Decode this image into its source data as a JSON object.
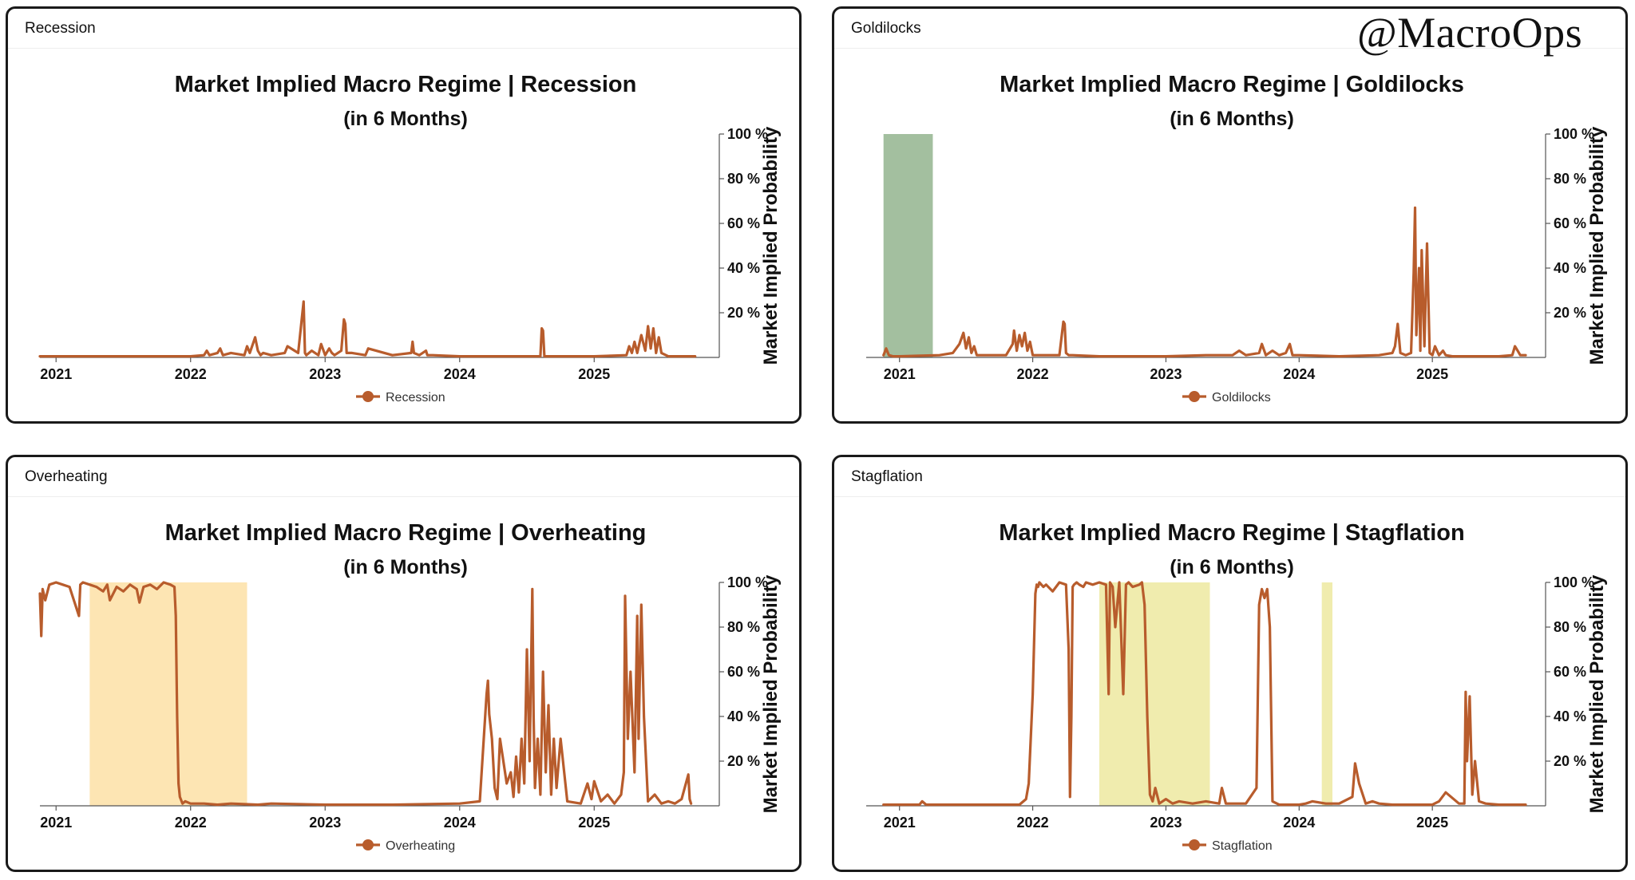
{
  "watermark": "@MacroOps",
  "colors": {
    "line": "#b85c2c",
    "axis": "#555555",
    "text": "#111111"
  },
  "panels": [
    {
      "header": "Recession",
      "chart_data": {
        "type": "line",
        "title": "Market Implied Macro Regime | Recession",
        "subtitle": "(in 6 Months)",
        "ylabel": "Market Implied Probability",
        "ylim": [
          0,
          100
        ],
        "yticks": [
          20,
          40,
          60,
          80,
          100
        ],
        "ytick_suffix": " %",
        "xlim": [
          2020.88,
          2025.93
        ],
        "xticks": [
          2021,
          2022,
          2023,
          2024,
          2025
        ],
        "legend": "Recession",
        "legend_position": "bottom-center",
        "line_color": "#b85c2c",
        "shaded_regions": [],
        "series": [
          {
            "name": "Recession",
            "x": [
              2020.88,
              2021.0,
              2021.5,
              2022.0,
              2022.1,
              2022.12,
              2022.14,
              2022.2,
              2022.22,
              2022.24,
              2022.3,
              2022.4,
              2022.42,
              2022.44,
              2022.48,
              2022.5,
              2022.52,
              2022.54,
              2022.6,
              2022.7,
              2022.72,
              2022.8,
              2022.84,
              2022.85,
              2022.86,
              2022.9,
              2022.95,
              2022.97,
              2023.0,
              2023.03,
              2023.05,
              2023.07,
              2023.12,
              2023.14,
              2023.15,
              2023.16,
              2023.2,
              2023.3,
              2023.32,
              2023.5,
              2023.64,
              2023.65,
              2023.66,
              2023.7,
              2023.75,
              2023.76,
              2023.8,
              2024.0,
              2024.4,
              2024.6,
              2024.61,
              2024.62,
              2024.63,
              2024.7,
              2025.0,
              2025.24,
              2025.26,
              2025.28,
              2025.3,
              2025.32,
              2025.35,
              2025.38,
              2025.4,
              2025.42,
              2025.44,
              2025.46,
              2025.48,
              2025.5,
              2025.55,
              2025.75
            ],
            "values": [
              0.5,
              0.5,
              0.5,
              0.5,
              1,
              3,
              1,
              2,
              4,
              1,
              2,
              1,
              5,
              2,
              9,
              3,
              1,
              2,
              1,
              2,
              5,
              2,
              25,
              2,
              1,
              3,
              1,
              6,
              1,
              4,
              2,
              1,
              3,
              17,
              15,
              2,
              2,
              1,
              4,
              1,
              2,
              7,
              2,
              1,
              3,
              1,
              1,
              0.5,
              0.5,
              0.5,
              13,
              12,
              0.5,
              0.5,
              0.5,
              1,
              5,
              2,
              7,
              2,
              10,
              3,
              14,
              4,
              13,
              2,
              9,
              2,
              0.5,
              0.5
            ]
          }
        ]
      }
    },
    {
      "header": "Goldilocks",
      "chart_data": {
        "type": "line",
        "title": "Market Implied Macro Regime | Goldilocks",
        "subtitle": "(in 6 Months)",
        "ylabel": "Market Implied Probability",
        "ylim": [
          0,
          100
        ],
        "yticks": [
          20,
          40,
          60,
          80,
          100
        ],
        "ytick_suffix": " %",
        "xlim": [
          2020.75,
          2025.85
        ],
        "xticks": [
          2021,
          2022,
          2023,
          2024,
          2025
        ],
        "legend": "Goldilocks",
        "legend_position": "bottom-center",
        "line_color": "#b85c2c",
        "shaded_regions": [
          {
            "x0": 2020.88,
            "x1": 2021.25,
            "color": "#a3bf9f"
          }
        ],
        "series": [
          {
            "name": "Goldilocks",
            "x": [
              2020.88,
              2020.9,
              2020.92,
              2020.95,
              2021.0,
              2021.3,
              2021.4,
              2021.45,
              2021.48,
              2021.5,
              2021.52,
              2021.54,
              2021.56,
              2021.58,
              2021.6,
              2021.8,
              2021.85,
              2021.86,
              2021.88,
              2021.9,
              2021.92,
              2021.94,
              2021.96,
              2021.98,
              2022.0,
              2022.1,
              2022.2,
              2022.23,
              2022.24,
              2022.25,
              2022.27,
              2022.3,
              2022.5,
              2023.0,
              2023.3,
              2023.5,
              2023.55,
              2023.6,
              2023.7,
              2023.72,
              2023.75,
              2023.8,
              2023.85,
              2023.9,
              2023.93,
              2023.95,
              2024.0,
              2024.3,
              2024.6,
              2024.7,
              2024.72,
              2024.74,
              2024.76,
              2024.8,
              2024.84,
              2024.86,
              2024.87,
              2024.88,
              2024.9,
              2024.91,
              2024.92,
              2024.94,
              2024.96,
              2024.98,
              2025.0,
              2025.02,
              2025.05,
              2025.08,
              2025.1,
              2025.15,
              2025.5,
              2025.6,
              2025.62,
              2025.64,
              2025.66,
              2025.7
            ],
            "values": [
              1,
              4,
              1,
              0.5,
              0.5,
              1,
              2,
              6,
              11,
              4,
              9,
              2,
              5,
              1,
              1,
              1,
              6,
              12,
              3,
              10,
              5,
              11,
              3,
              7,
              1,
              1,
              1,
              16,
              15,
              2,
              1,
              1,
              0.5,
              0.5,
              1,
              1,
              3,
              1,
              2,
              6,
              1,
              3,
              1,
              2,
              6,
              1,
              1,
              0.5,
              1,
              2,
              5,
              15,
              2,
              1,
              2,
              38,
              67,
              10,
              40,
              3,
              48,
              5,
              51,
              2,
              1,
              5,
              1,
              3,
              1,
              0.5,
              0.5,
              1,
              5,
              3,
              1,
              1
            ]
          }
        ]
      }
    },
    {
      "header": "Overheating",
      "chart_data": {
        "type": "line",
        "title": "Market Implied Macro Regime | Overheating",
        "subtitle": "(in 6 Months)",
        "ylabel": "Market Implied Probability",
        "ylim": [
          0,
          100
        ],
        "yticks": [
          20,
          40,
          60,
          80,
          100
        ],
        "ytick_suffix": " %",
        "xlim": [
          2020.88,
          2025.93
        ],
        "xticks": [
          2021,
          2022,
          2023,
          2024,
          2025
        ],
        "legend": "Overheating",
        "legend_position": "bottom-center",
        "line_color": "#b85c2c",
        "shaded_regions": [
          {
            "x0": 2021.25,
            "x1": 2022.42,
            "color": "#fde5b3"
          }
        ],
        "series": [
          {
            "name": "Overheating",
            "x": [
              2020.88,
              2020.89,
              2020.9,
              2020.92,
              2020.95,
              2021.0,
              2021.05,
              2021.1,
              2021.17,
              2021.18,
              2021.2,
              2021.25,
              2021.3,
              2021.35,
              2021.38,
              2021.4,
              2021.45,
              2021.5,
              2021.55,
              2021.6,
              2021.62,
              2021.65,
              2021.7,
              2021.75,
              2021.8,
              2021.85,
              2021.88,
              2021.89,
              2021.9,
              2021.91,
              2021.92,
              2021.94,
              2021.96,
              2022.0,
              2022.1,
              2022.2,
              2022.3,
              2022.5,
              2022.6,
              2023.0,
              2023.5,
              2024.0,
              2024.15,
              2024.2,
              2024.21,
              2024.22,
              2024.24,
              2024.26,
              2024.28,
              2024.3,
              2024.35,
              2024.38,
              2024.4,
              2024.42,
              2024.44,
              2024.46,
              2024.48,
              2024.5,
              2024.52,
              2024.54,
              2024.55,
              2024.56,
              2024.58,
              2024.6,
              2024.62,
              2024.64,
              2024.66,
              2024.68,
              2024.7,
              2024.72,
              2024.75,
              2024.8,
              2024.9,
              2024.95,
              2024.98,
              2025.0,
              2025.05,
              2025.1,
              2025.15,
              2025.2,
              2025.22,
              2025.23,
              2025.25,
              2025.27,
              2025.3,
              2025.32,
              2025.33,
              2025.35,
              2025.37,
              2025.4,
              2025.45,
              2025.5,
              2025.55,
              2025.6,
              2025.65,
              2025.7,
              2025.71,
              2025.72
            ],
            "values": [
              95,
              76,
              97,
              92,
              99,
              100,
              99,
              98,
              85,
              99,
              100,
              99,
              98,
              96,
              99,
              92,
              98,
              96,
              99,
              97,
              91,
              98,
              99,
              97,
              100,
              99,
              98,
              85,
              40,
              10,
              4,
              1,
              2,
              1,
              1,
              0.5,
              1,
              0.5,
              1,
              0.5,
              0.5,
              1,
              2,
              50,
              56,
              41,
              30,
              8,
              3,
              30,
              10,
              15,
              4,
              22,
              6,
              30,
              10,
              70,
              20,
              97,
              40,
              8,
              30,
              5,
              60,
              15,
              45,
              5,
              30,
              8,
              30,
              2,
              1,
              10,
              3,
              11,
              2,
              5,
              1,
              5,
              15,
              94,
              30,
              60,
              15,
              85,
              30,
              90,
              40,
              2,
              5,
              1,
              2,
              1,
              3,
              14,
              3,
              1
            ]
          }
        ]
      }
    },
    {
      "header": "Stagflation",
      "chart_data": {
        "type": "line",
        "title": "Market Implied Macro Regime | Stagflation",
        "subtitle": "(in 6 Months)",
        "ylabel": "Market Implied Probability",
        "ylim": [
          0,
          100
        ],
        "yticks": [
          20,
          40,
          60,
          80,
          100
        ],
        "ytick_suffix": " %",
        "xlim": [
          2020.75,
          2025.85
        ],
        "xticks": [
          2021,
          2022,
          2023,
          2024,
          2025
        ],
        "legend": "Stagflation",
        "legend_position": "bottom-center",
        "line_color": "#b85c2c",
        "shaded_regions": [
          {
            "x0": 2022.5,
            "x1": 2023.33,
            "color": "#f0ecae"
          },
          {
            "x0": 2024.17,
            "x1": 2024.25,
            "color": "#f0ecae"
          }
        ],
        "series": [
          {
            "name": "Stagflation",
            "x": [
              2020.88,
              2021.0,
              2021.15,
              2021.17,
              2021.2,
              2021.5,
              2021.9,
              2021.95,
              2021.97,
              2022.0,
              2022.02,
              2022.03,
              2022.04,
              2022.05,
              2022.08,
              2022.1,
              2022.15,
              2022.2,
              2022.25,
              2022.27,
              2022.28,
              2022.29,
              2022.3,
              2022.31,
              2022.33,
              2022.35,
              2022.38,
              2022.4,
              2022.45,
              2022.5,
              2022.55,
              2022.57,
              2022.58,
              2022.6,
              2022.62,
              2022.65,
              2022.68,
              2022.7,
              2022.72,
              2022.75,
              2022.8,
              2022.82,
              2022.84,
              2022.86,
              2022.88,
              2022.9,
              2022.92,
              2022.95,
              2023.0,
              2023.05,
              2023.1,
              2023.2,
              2023.3,
              2023.4,
              2023.42,
              2023.45,
              2023.5,
              2023.6,
              2023.68,
              2023.7,
              2023.72,
              2023.74,
              2023.76,
              2023.78,
              2023.8,
              2023.85,
              2024.0,
              2024.05,
              2024.1,
              2024.2,
              2024.3,
              2024.4,
              2024.42,
              2024.45,
              2024.5,
              2024.55,
              2024.6,
              2024.7,
              2025.0,
              2025.05,
              2025.1,
              2025.2,
              2025.24,
              2025.25,
              2025.26,
              2025.28,
              2025.3,
              2025.32,
              2025.35,
              2025.4,
              2025.5,
              2025.7
            ],
            "values": [
              0.5,
              0.5,
              0.5,
              2,
              0.5,
              0.5,
              0.5,
              3,
              10,
              50,
              95,
              99,
              98,
              100,
              98,
              99,
              96,
              100,
              99,
              70,
              4,
              40,
              98,
              99,
              100,
              99,
              98,
              100,
              99,
              100,
              99,
              50,
              100,
              98,
              80,
              100,
              50,
              99,
              100,
              98,
              99,
              100,
              90,
              40,
              5,
              2,
              8,
              1,
              3,
              1,
              2,
              1,
              2,
              1,
              8,
              1,
              1,
              1,
              8,
              90,
              97,
              93,
              97,
              80,
              2,
              0.5,
              0.5,
              1,
              2,
              1,
              1,
              4,
              19,
              10,
              1,
              2,
              1,
              0.5,
              0.5,
              2,
              6,
              1,
              1,
              51,
              20,
              49,
              5,
              20,
              2,
              1,
              0.5,
              0.5
            ]
          }
        ]
      }
    }
  ]
}
